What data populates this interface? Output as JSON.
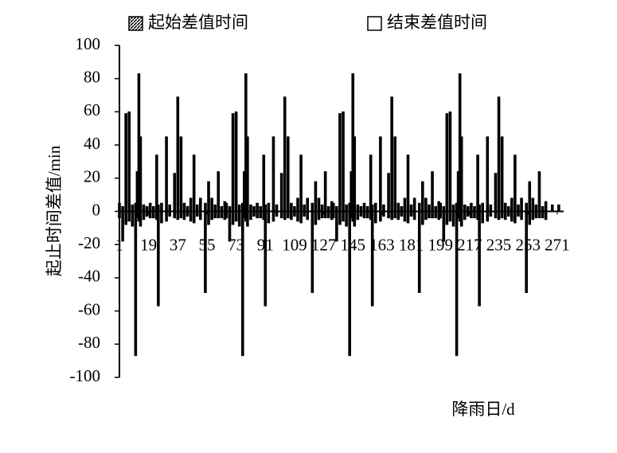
{
  "chart_data": {
    "type": "bar",
    "x_label": "降雨日/d",
    "y_label": "起止时间差值/min",
    "x": [
      1,
      3,
      5,
      7,
      9,
      11,
      12,
      13,
      14,
      16,
      18,
      20,
      22,
      24,
      25,
      27,
      30,
      32,
      35,
      37,
      39,
      41,
      43,
      45,
      47,
      49,
      51,
      54,
      56,
      58,
      60,
      62,
      64,
      66,
      67,
      69,
      71,
      73,
      75,
      77,
      78,
      79,
      80,
      82,
      84,
      86,
      88,
      90,
      91,
      93,
      96,
      98,
      101,
      103,
      105,
      107,
      109,
      111,
      113,
      115,
      117,
      120,
      122,
      124,
      126,
      128,
      130,
      132,
      133,
      135,
      137,
      139,
      141,
      143,
      144,
      145,
      146,
      148,
      150,
      152,
      154,
      156,
      157,
      159,
      162,
      164,
      167,
      169,
      171,
      173,
      175,
      177,
      179,
      181,
      183,
      186,
      188,
      190,
      192,
      194,
      196,
      198,
      199,
      201,
      203,
      205,
      207,
      209,
      210,
      211,
      212,
      214,
      216,
      218,
      220,
      222,
      223,
      225,
      228,
      230,
      233,
      235,
      237,
      239,
      241,
      243,
      245,
      247,
      249,
      252,
      254,
      256,
      258,
      260,
      262,
      264,
      268,
      272
    ],
    "series": [
      {
        "name": "起始差值时间",
        "color": "#000000",
        "values": [
          5,
          -18,
          59,
          60,
          4,
          -87,
          24,
          83,
          45,
          4,
          3,
          5,
          -4,
          34,
          -57,
          5,
          45,
          4,
          23,
          69,
          45,
          5,
          3,
          8,
          34,
          4,
          8,
          -49,
          18,
          8,
          4,
          24,
          3,
          6,
          5,
          -18,
          59,
          60,
          4,
          -87,
          24,
          83,
          45,
          4,
          3,
          5,
          -4,
          34,
          -57,
          5,
          45,
          4,
          23,
          69,
          45,
          5,
          3,
          8,
          34,
          4,
          8,
          -49,
          18,
          8,
          4,
          24,
          3,
          6,
          5,
          -18,
          59,
          60,
          4,
          -87,
          24,
          83,
          45,
          4,
          3,
          5,
          -4,
          34,
          -57,
          5,
          45,
          4,
          23,
          69,
          45,
          5,
          3,
          8,
          34,
          4,
          8,
          -49,
          18,
          8,
          4,
          24,
          3,
          6,
          5,
          -18,
          59,
          60,
          4,
          -87,
          24,
          83,
          45,
          4,
          3,
          5,
          -4,
          34,
          -57,
          5,
          45,
          4,
          23,
          69,
          45,
          5,
          3,
          8,
          34,
          4,
          8,
          -49,
          18,
          8,
          4,
          24,
          3,
          6,
          4,
          4
        ]
      },
      {
        "name": "结束差值时间",
        "color": "#ffffff",
        "values": [
          -4,
          3,
          -8,
          -6,
          -9,
          5,
          -4,
          -6,
          -9,
          -5,
          -3,
          -4,
          3,
          -5,
          4,
          -7,
          -6,
          -3,
          -4,
          -5,
          -4,
          -5,
          -3,
          -6,
          -7,
          -3,
          -5,
          5,
          -8,
          -5,
          -4,
          -4,
          -4,
          -5,
          -4,
          3,
          -8,
          -6,
          -9,
          5,
          -4,
          -6,
          -9,
          -5,
          -3,
          -4,
          3,
          -5,
          4,
          -7,
          -6,
          -3,
          -4,
          -5,
          -4,
          -5,
          -3,
          -6,
          -7,
          -3,
          -5,
          5,
          -8,
          -5,
          -4,
          -4,
          -4,
          -5,
          -4,
          3,
          -8,
          -6,
          -9,
          5,
          -4,
          -6,
          -9,
          -5,
          -3,
          -4,
          3,
          -5,
          4,
          -7,
          -6,
          -3,
          -4,
          -5,
          -4,
          -5,
          -3,
          -6,
          -7,
          -3,
          -5,
          5,
          -8,
          -5,
          -4,
          -4,
          -4,
          -5,
          -4,
          3,
          -8,
          -6,
          -9,
          5,
          -4,
          -6,
          -9,
          -5,
          -3,
          -4,
          3,
          -5,
          4,
          -7,
          -6,
          -3,
          -4,
          -5,
          -4,
          -5,
          -3,
          -6,
          -7,
          -3,
          -5,
          5,
          -8,
          -5,
          -4,
          -4,
          -4,
          -5,
          0,
          0
        ]
      }
    ],
    "xlim": [
      1,
      275
    ],
    "xticks": [
      1,
      19,
      37,
      55,
      73,
      91,
      109,
      127,
      145,
      163,
      181,
      199,
      217,
      235,
      253,
      271
    ],
    "ylim": [
      -100,
      100
    ],
    "yticks": [
      -100,
      -80,
      -60,
      -40,
      -20,
      0,
      20,
      40,
      60,
      80,
      100
    ]
  }
}
